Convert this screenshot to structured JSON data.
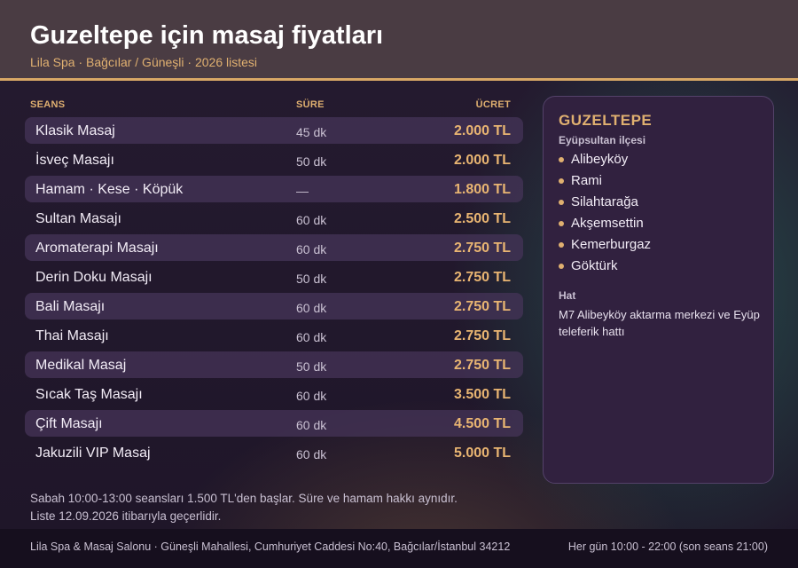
{
  "header": {
    "title": "Guzeltepe için masaj fiyatları",
    "subtitle": "Lila Spa · Bağcılar / Güneşli · 2026 listesi"
  },
  "table": {
    "columns": [
      "SEANS",
      "SÜRE",
      "ÜCRET"
    ],
    "rows": [
      {
        "name": "Klasik Masaj",
        "duration": "45 dk",
        "price": "2.000 TL"
      },
      {
        "name": "İsveç Masajı",
        "duration": "50 dk",
        "price": "2.000 TL"
      },
      {
        "name": "Hamam · Kese · Köpük",
        "duration": "—",
        "price": "1.800 TL"
      },
      {
        "name": "Sultan Masajı",
        "duration": "60 dk",
        "price": "2.500 TL"
      },
      {
        "name": "Aromaterapi Masajı",
        "duration": "60 dk",
        "price": "2.750 TL"
      },
      {
        "name": "Derin Doku Masajı",
        "duration": "50 dk",
        "price": "2.750 TL"
      },
      {
        "name": "Bali Masajı",
        "duration": "60 dk",
        "price": "2.750 TL"
      },
      {
        "name": "Thai Masajı",
        "duration": "60 dk",
        "price": "2.750 TL"
      },
      {
        "name": "Medikal Masaj",
        "duration": "50 dk",
        "price": "2.750 TL"
      },
      {
        "name": "Sıcak Taş Masajı",
        "duration": "60 dk",
        "price": "3.500 TL"
      },
      {
        "name": "Çift Masajı",
        "duration": "60 dk",
        "price": "4.500 TL"
      },
      {
        "name": "Jakuzili VIP Masaj",
        "duration": "60 dk",
        "price": "5.000 TL"
      }
    ]
  },
  "notes": {
    "line1": "Sabah 10:00-13:00 seansları 1.500 TL'den başlar. Süre ve hamam hakkı aynıdır.",
    "line2": "Liste 12.09.2026 itibarıyla geçerlidir."
  },
  "panel": {
    "title": "GUZELTEPE",
    "subtitle": "Eyüpsultan ilçesi",
    "places": [
      "Alibeyköy",
      "Rami",
      "Silahtarağa",
      "Akşemsettin",
      "Kemerburgaz",
      "Göktürk"
    ],
    "hat_label": "Hat",
    "hat_text": "M7 Alibeyköy aktarma merkezi ve Eyüp teleferik hattı"
  },
  "footer": {
    "address": "Lila Spa & Masaj Salonu · Güneşli Mahallesi, Cumhuriyet Caddesi No:40, Bağcılar/İstanbul 34212",
    "hours": "Her gün 10:00 - 22:00 (son seans 21:00)"
  },
  "colors": {
    "accent": "#e0b070",
    "header_bg": "#4a3c43",
    "panel_bg": "#31213f"
  }
}
